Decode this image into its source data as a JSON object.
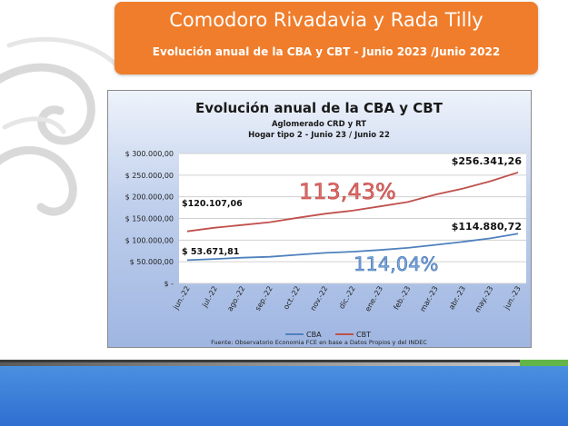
{
  "header": {
    "title": "Comodoro Rivadavia y Rada Tilly",
    "subtitle": "Evolución anual de la CBA y CBT - Junio 2023 /Junio 2022"
  },
  "colors": {
    "banner": "#f07d2b",
    "cba": "#4f81bd",
    "cbt": "#c0504d",
    "cbt_pct": "#e46c6a",
    "cba_pct": "#7aa7dc"
  },
  "chart_data": {
    "type": "line",
    "title": "Evolución anual de la CBA y CBT",
    "subtitle_lines": [
      "Aglomerado CRD y RT",
      "Hogar tipo 2 - Junio 23 / Junio 22"
    ],
    "categories": [
      "jun.-22",
      "jul.-22",
      "ago.-22",
      "sep.-22",
      "oct.-22",
      "nov.-22",
      "dic.-22",
      "ene.-23",
      "feb.-23",
      "mar.-23",
      "abr.-23",
      "may.-23",
      "jun.-23"
    ],
    "series": [
      {
        "name": "CBA",
        "color": "#4f81bd",
        "values": [
          53671.81,
          56500,
          59300,
          61500,
          66000,
          70500,
          73300,
          77200,
          82000,
          89000,
          96000,
          104000,
          114880.72
        ]
      },
      {
        "name": "CBT",
        "color": "#c0504d",
        "values": [
          120107.06,
          128500,
          134800,
          141500,
          151500,
          161000,
          168000,
          178000,
          188000,
          205000,
          219000,
          236000,
          256341.26
        ]
      }
    ],
    "y_ticks": [
      "$ -",
      "$ 50.000,00",
      "$ 100.000,00",
      "$ 150.000,00",
      "$ 200.000,00",
      "$ 250.000,00",
      "$ 300.000,00"
    ],
    "ylim": [
      0,
      300000
    ],
    "grid": true,
    "legend_position": "bottom",
    "annotations": {
      "cba_start": "$ 53.671,81",
      "cbt_start": "$120.107,06",
      "cba_end": "$114.880,72",
      "cbt_end": "$256.341,26",
      "cbt_pct": "113,43%",
      "cba_pct": "114,04%"
    },
    "source": "Fuente: Observatorio Economia FCE en base a Datos Propios y del INDEC"
  }
}
